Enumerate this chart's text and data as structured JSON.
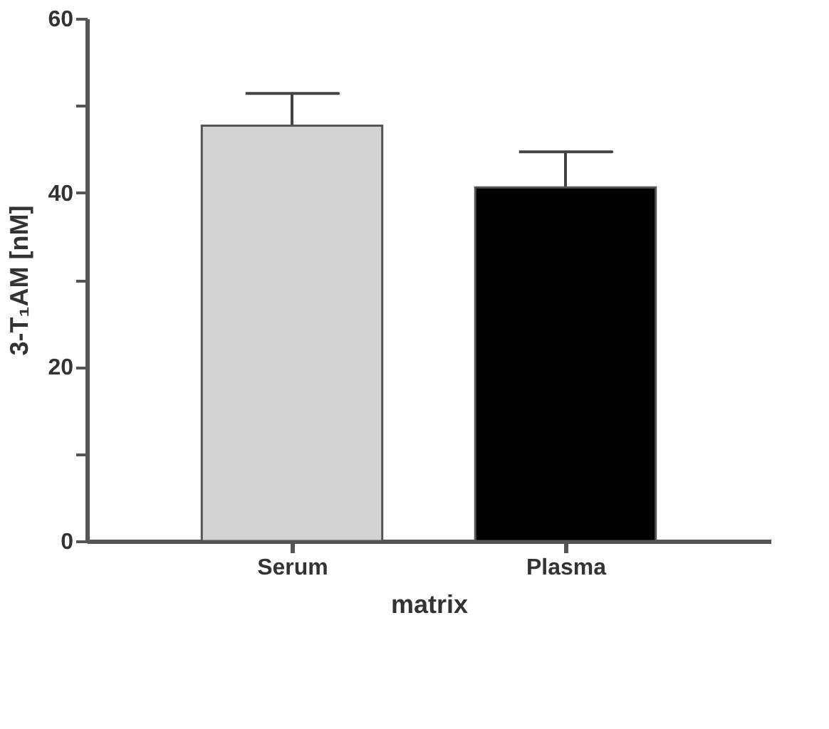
{
  "chart_data": {
    "type": "bar",
    "xlabel": "matrix",
    "ylabel": "3-T₁AM [nM]",
    "categories": [
      "Serum",
      "Plasma"
    ],
    "values": [
      47.7,
      40.6
    ],
    "colors": [
      "#d3d3d3",
      "#000000"
    ],
    "errors": [
      3.7,
      4.1
    ],
    "ylim": [
      0,
      60
    ],
    "yticks": [
      0,
      {
        "value": 10,
        "label": null
      },
      20,
      {
        "value": 30,
        "label": null
      },
      40,
      {
        "value": 50,
        "label": null
      },
      60
    ],
    "grid": false
  }
}
